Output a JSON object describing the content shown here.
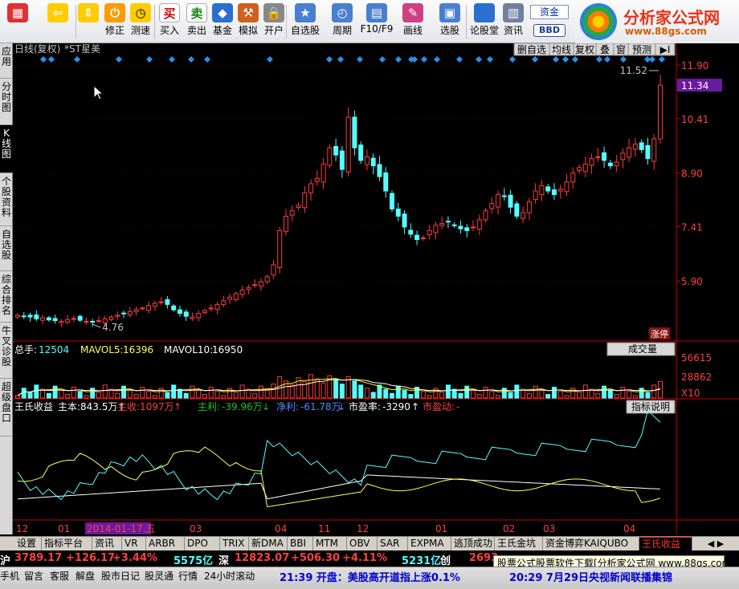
{
  "toolbar": {
    "buttons": [
      {
        "label": "",
        "icon": "app-menu-icon"
      },
      {
        "label": "",
        "icon": "back-arrow-icon"
      },
      {
        "label": "",
        "icon": "scroll-arrows-icon"
      },
      {
        "label": "修正",
        "icon": "power-icon"
      },
      {
        "label": "测速",
        "icon": "clock-icon"
      },
      {
        "label": "买入",
        "icon": "buy-icon",
        "glyph": "买"
      },
      {
        "label": "卖出",
        "icon": "sell-icon",
        "glyph": "卖"
      },
      {
        "label": "基金",
        "icon": "fund-icon"
      },
      {
        "label": "模拟",
        "icon": "hammer-icon"
      },
      {
        "label": "开户",
        "icon": "lock-icon"
      },
      {
        "label": "自选股",
        "icon": "star-icon"
      },
      {
        "label": "周期",
        "icon": "period-icon"
      },
      {
        "label": "F10/F9",
        "icon": "f10-icon"
      },
      {
        "label": "画线",
        "icon": "pencil-icon"
      },
      {
        "label": "选股",
        "icon": "select-stock-icon"
      },
      {
        "label": "论股堂",
        "icon": "forum-icon",
        "glyph": "论"
      },
      {
        "label": "资讯",
        "icon": "news-icon"
      }
    ],
    "fund_label": "资金",
    "bbd_label": "BBD"
  },
  "logo": {
    "title": "分析家公式网",
    "url_text": "www.88gs.com"
  },
  "left_tabs": [
    "应用",
    "分时图",
    "K线图",
    "个股资料",
    "自选股",
    "综合排名",
    "牛叉诊股",
    "超级盘口"
  ],
  "chart_header": {
    "period": "日线(复权)",
    "stock": "*ST星美",
    "buttons": [
      "删自选",
      "均线",
      "复权",
      "叠",
      "窗",
      "预测",
      "▶I"
    ]
  },
  "price_axis": {
    "labels": [
      "11.90",
      "11.34",
      "10.41",
      "8.90",
      "7.41",
      "5.90"
    ],
    "current": "11.34"
  },
  "annotations": {
    "high": "11.52",
    "low": "4.76",
    "limit_badge": "涨停"
  },
  "volume_panel": {
    "prefix": "总手:",
    "vol": "12504",
    "mavol5_label": "MAVOL5:",
    "mavol5": "16396",
    "mavol10_label": "MAVOL10:",
    "mavol10": "16950",
    "dropdown": "成交量",
    "axis": [
      "56615",
      "28862",
      "X10"
    ]
  },
  "indicator_panel": {
    "name": "王氏收益",
    "items": [
      {
        "label": "主本:",
        "value": "843.5万",
        "arrow": "↑"
      },
      {
        "label": "主收:",
        "value": "1097万",
        "arrow": "↑"
      },
      {
        "label": "主利:",
        "value": "-39.96万",
        "arrow": "↓"
      },
      {
        "label": "净利:",
        "value": "-61.78万",
        "arrow": "↓"
      },
      {
        "label": "市盈率:",
        "value": "-3290",
        "arrow": "↑"
      },
      {
        "label": "市盈动:",
        "value": "-",
        "arrow": ""
      }
    ],
    "help": "指标说明"
  },
  "time_axis": {
    "labels": [
      "12",
      "01",
      "2014-01-17.五",
      "03",
      "04",
      "11",
      "12",
      "01",
      "02",
      "03",
      "04"
    ]
  },
  "bottom_tabs": [
    "设置",
    "指标平台",
    "资讯",
    "VR",
    "ARBR",
    "DPO",
    "TRIX",
    "新DMA",
    "BBI",
    "MTM",
    "OBV",
    "SAR",
    "EXPMA",
    "逃顶成功",
    "王氏金坑",
    "资金博弈KAIQUBO",
    "王氏收益"
  ],
  "ticker": {
    "sh_label": "沪",
    "sh_index": "3789.17",
    "sh_change": "+126.17",
    "sh_pct": "+3.44%",
    "sh_amount": "5575亿",
    "sz_label": "深",
    "sz_index": "12823.07",
    "sz_change": "+506.30",
    "sz_pct": "+4.11%",
    "sz_amount": "5231亿",
    "cy_label": "创",
    "cy_index": "2693"
  },
  "ad_text": "股票公式股票软件下载[分析家公式网 www.88gs.com]",
  "status": {
    "items": [
      "手机",
      "留言",
      "客服",
      "解盘",
      "股市日记",
      "股灵通",
      "行情",
      "24小时滚动"
    ],
    "news1": "21:39 开盘：美股高开道指上涨0.1%",
    "news2": "20:29 7月29日央视新闻联播集锦"
  },
  "colors": {
    "up": "#ff3c3c",
    "down": "#54ffff",
    "axis": "#c80000",
    "white_line": "#ffffff",
    "yellow_line": "#ffff54",
    "cyan_line": "#54ffff",
    "ma_yellow": "#ffff00"
  },
  "chart_data": {
    "type": "candlestick",
    "symbol": "*ST星美",
    "ylim": [
      4.3,
      12.1
    ],
    "y_ticks": [
      11.9,
      10.41,
      8.9,
      7.41,
      5.9
    ],
    "x_labels": [
      "12",
      "01",
      "2014-01-17.五",
      "03",
      "04",
      "11",
      "12",
      "01",
      "02",
      "03",
      "04"
    ],
    "closes": [
      4.95,
      4.93,
      4.9,
      4.85,
      4.88,
      4.82,
      4.8,
      4.78,
      4.83,
      4.86,
      4.81,
      4.78,
      4.76,
      4.8,
      4.85,
      4.9,
      4.95,
      5.0,
      5.05,
      5.1,
      5.15,
      5.22,
      5.28,
      5.32,
      5.25,
      5.1,
      5.0,
      4.92,
      4.9,
      5.0,
      5.08,
      5.15,
      5.25,
      5.35,
      5.45,
      5.55,
      5.65,
      5.72,
      5.8,
      5.88,
      6.02,
      6.35,
      7.3,
      7.7,
      7.85,
      8.0,
      8.35,
      8.6,
      8.75,
      9.15,
      9.6,
      9.4,
      9.0,
      10.45,
      9.6,
      9.25,
      9.35,
      9.1,
      8.8,
      8.4,
      7.9,
      7.7,
      7.4,
      7.2,
      7.05,
      7.1,
      7.3,
      7.45,
      7.5,
      7.55,
      7.45,
      7.35,
      7.3,
      7.4,
      7.6,
      7.85,
      8.05,
      8.3,
      8.25,
      7.95,
      7.7,
      7.8,
      8.1,
      8.4,
      8.55,
      8.4,
      8.3,
      8.45,
      8.65,
      8.9,
      9.05,
      9.15,
      9.3,
      9.35,
      9.25,
      9.1,
      9.2,
      9.45,
      9.6,
      9.7,
      9.55,
      9.3,
      9.85,
      11.34
    ],
    "volume_axis": [
      56615,
      28862
    ],
    "mavol5": 16396,
    "mavol10": 16950,
    "last_volume": 12504
  }
}
